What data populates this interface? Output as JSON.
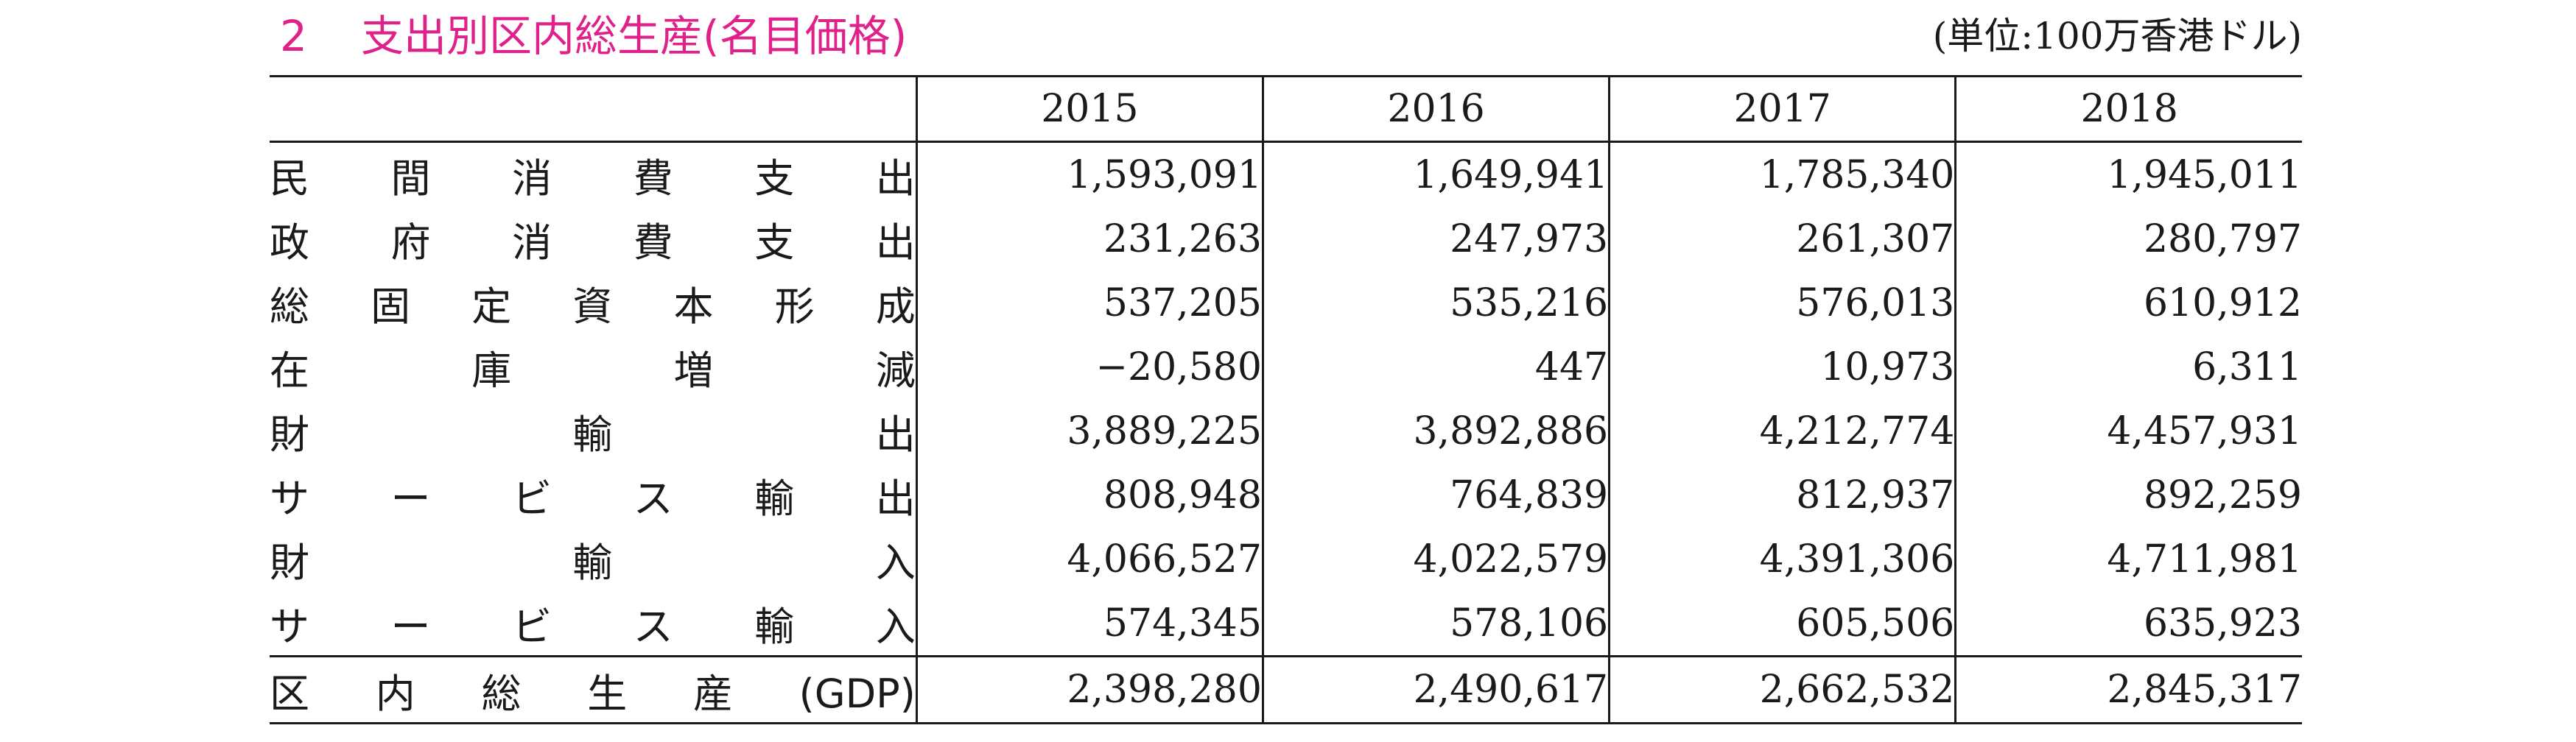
{
  "title": {
    "number": "2",
    "text": "支出別区内総生産(名目価格)"
  },
  "unit": "(単位:100万香港ドル)",
  "table": {
    "years": [
      "2015",
      "2016",
      "2017",
      "2018"
    ],
    "rows": [
      {
        "label": "民間消費支出",
        "values": [
          "1,593,091",
          "1,649,941",
          "1,785,340",
          "1,945,011"
        ]
      },
      {
        "label": "政府消費支出",
        "values": [
          "231,263",
          "247,973",
          "261,307",
          "280,797"
        ]
      },
      {
        "label": "総固定資本形成",
        "values": [
          "537,205",
          "535,216",
          "576,013",
          "610,912"
        ]
      },
      {
        "label": "在庫増減",
        "values": [
          "−20,580",
          "447",
          "10,973",
          "6,311"
        ]
      },
      {
        "label": "財輸出",
        "values": [
          "3,889,225",
          "3,892,886",
          "4,212,774",
          "4,457,931"
        ]
      },
      {
        "label": "サービス輸出",
        "values": [
          "808,948",
          "764,839",
          "812,937",
          "892,259"
        ]
      },
      {
        "label": "財輸入",
        "values": [
          "4,066,527",
          "4,022,579",
          "4,391,306",
          "4,711,981"
        ]
      },
      {
        "label": "サービス輸入",
        "values": [
          "574,345",
          "578,106",
          "605,506",
          "635,923"
        ]
      }
    ],
    "total": {
      "label": "区内総生産(GDP)",
      "values": [
        "2,398,280",
        "2,490,617",
        "2,662,532",
        "2,845,317"
      ]
    }
  }
}
